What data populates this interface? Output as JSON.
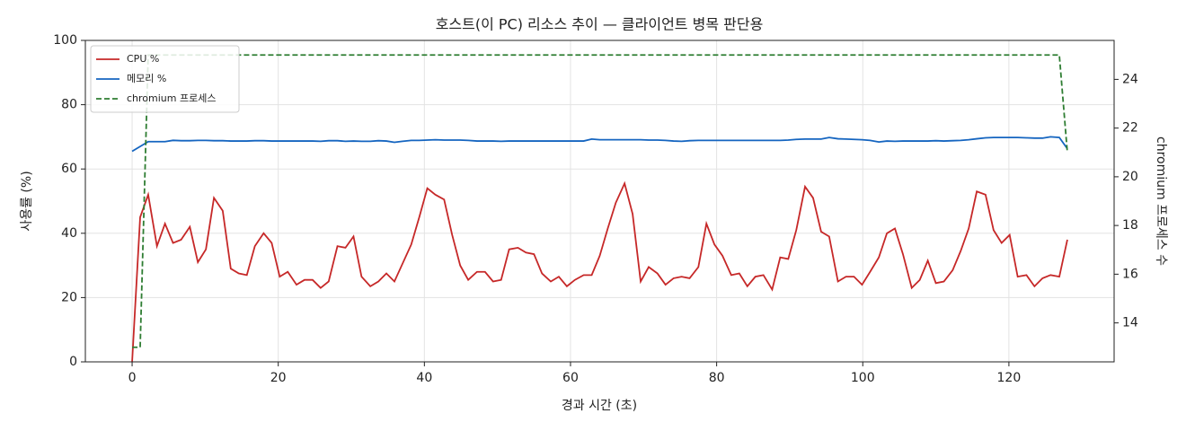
{
  "chart_data": {
    "type": "line",
    "title": "호스트(이 PC) 리소스 추이 — 클라이언트 병목 판단용",
    "x_label": "경과 시간 (초)",
    "y_label": "사용률 (%)",
    "y2_label": "chromium 프로세스 수",
    "x": [
      0,
      1.1,
      2.2,
      3.4,
      4.5,
      5.6,
      6.7,
      7.9,
      9.0,
      10.1,
      11.2,
      12.4,
      13.5,
      14.6,
      15.7,
      16.8,
      18.0,
      19.1,
      20.2,
      21.3,
      22.5,
      23.6,
      24.7,
      25.8,
      26.9,
      28.1,
      29.2,
      30.3,
      31.4,
      32.6,
      33.7,
      34.8,
      35.9,
      37.0,
      38.2,
      39.3,
      40.4,
      41.5,
      42.7,
      43.8,
      44.9,
      46.0,
      47.2,
      48.3,
      49.4,
      50.5,
      51.6,
      52.8,
      53.9,
      55.0,
      56.1,
      57.3,
      58.4,
      59.5,
      60.6,
      61.8,
      62.9,
      64.0,
      65.1,
      66.2,
      67.4,
      68.5,
      69.6,
      70.7,
      71.9,
      73.0,
      74.1,
      75.2,
      76.3,
      77.5,
      78.6,
      79.7,
      80.8,
      82.0,
      83.1,
      84.2,
      85.3,
      86.4,
      87.6,
      88.7,
      89.8,
      90.9,
      92.1,
      93.2,
      94.3,
      95.4,
      96.6,
      97.7,
      98.8,
      99.9,
      101.0,
      102.2,
      103.3,
      104.4,
      105.5,
      106.7,
      107.8,
      108.9,
      110.0,
      111.1,
      112.3,
      113.4,
      114.5,
      115.6,
      116.8,
      117.9,
      119.0,
      120.1,
      121.2,
      122.4,
      123.5,
      124.6,
      125.7,
      126.9,
      128.0
    ],
    "series": [
      {
        "name": "CPU %",
        "color": "#c62828",
        "linestyle": "solid",
        "values": [
          0,
          45,
          52,
          36,
          43,
          37,
          38,
          42,
          31,
          35,
          51,
          47,
          29,
          27.5,
          27,
          36,
          40,
          37,
          26.5,
          28,
          24,
          25.5,
          25.5,
          23,
          25,
          36,
          35.5,
          39,
          26.5,
          23.5,
          25,
          27.5,
          25,
          30.5,
          36.5,
          45,
          54,
          52,
          50.5,
          39.5,
          30,
          25.5,
          28,
          28,
          25,
          25.5,
          35,
          35.5,
          34,
          33.5,
          27.5,
          25,
          26.5,
          23.5,
          25.5,
          27,
          27,
          33,
          41.5,
          49.5,
          55.5,
          46,
          25,
          29.5,
          27.5,
          24,
          26,
          26.5,
          26,
          29.5,
          43,
          36.5,
          33,
          27,
          27.5,
          23.5,
          26.5,
          27,
          22.5,
          32.5,
          32,
          41,
          54.5,
          51,
          40.5,
          39,
          25,
          26.5,
          26.5,
          24,
          28,
          32.5,
          40,
          41.5,
          33.5,
          23,
          25.5,
          31.5,
          24.5,
          25,
          28.5,
          34.5,
          41.5,
          53,
          52,
          41,
          37,
          39.5,
          26.5,
          27,
          23.5,
          26,
          27,
          26.5,
          38
        ]
      },
      {
        "name": "메모리 %",
        "color": "#1565c0",
        "linestyle": "solid",
        "values": [
          65.5,
          67,
          68.5,
          68.5,
          68.5,
          68.9,
          68.8,
          68.8,
          68.9,
          68.9,
          68.8,
          68.8,
          68.7,
          68.7,
          68.7,
          68.8,
          68.8,
          68.7,
          68.7,
          68.7,
          68.7,
          68.7,
          68.7,
          68.6,
          68.8,
          68.8,
          68.6,
          68.7,
          68.6,
          68.6,
          68.8,
          68.7,
          68.3,
          68.6,
          68.9,
          68.9,
          69,
          69.1,
          69,
          69,
          69,
          68.9,
          68.7,
          68.7,
          68.7,
          68.6,
          68.7,
          68.7,
          68.7,
          68.7,
          68.7,
          68.7,
          68.7,
          68.7,
          68.7,
          68.7,
          69.3,
          69.1,
          69.1,
          69.1,
          69.1,
          69.1,
          69.1,
          69,
          69,
          68.9,
          68.7,
          68.6,
          68.8,
          68.9,
          68.9,
          68.9,
          68.9,
          68.9,
          68.9,
          68.9,
          68.9,
          68.9,
          68.9,
          68.9,
          69,
          69.2,
          69.3,
          69.3,
          69.3,
          69.8,
          69.4,
          69.3,
          69.2,
          69.1,
          68.9,
          68.4,
          68.7,
          68.6,
          68.7,
          68.7,
          68.7,
          68.7,
          68.8,
          68.7,
          68.8,
          68.9,
          69.1,
          69.4,
          69.7,
          69.8,
          69.8,
          69.8,
          69.8,
          69.7,
          69.6,
          69.6,
          70,
          69.8,
          66.3
        ]
      },
      {
        "name": "chromium 프로세스",
        "color": "#2e7d32",
        "linestyle": "dashed",
        "axis": "y2",
        "values": [
          13,
          13,
          25,
          25,
          25,
          25,
          25,
          25,
          25,
          25,
          25,
          25,
          25,
          25,
          25,
          25,
          25,
          25,
          25,
          25,
          25,
          25,
          25,
          25,
          25,
          25,
          25,
          25,
          25,
          25,
          25,
          25,
          25,
          25,
          25,
          25,
          25,
          25,
          25,
          25,
          25,
          25,
          25,
          25,
          25,
          25,
          25,
          25,
          25,
          25,
          25,
          25,
          25,
          25,
          25,
          25,
          25,
          25,
          25,
          25,
          25,
          25,
          25,
          25,
          25,
          25,
          25,
          25,
          25,
          25,
          25,
          25,
          25,
          25,
          25,
          25,
          25,
          25,
          25,
          25,
          25,
          25,
          25,
          25,
          25,
          25,
          25,
          25,
          25,
          25,
          25,
          25,
          25,
          25,
          25,
          25,
          25,
          25,
          25,
          25,
          25,
          25,
          25,
          25,
          25,
          25,
          25,
          25,
          25,
          25,
          25,
          25,
          25,
          25,
          21
        ]
      }
    ],
    "xlim": [
      -6.4,
      134.4
    ],
    "xticks": [
      0,
      20,
      40,
      60,
      80,
      100,
      120
    ],
    "ylim": [
      0,
      100
    ],
    "yticks": [
      0,
      20,
      40,
      60,
      80,
      100
    ],
    "y2lim": [
      12.4,
      25.6
    ],
    "y2ticks": [
      14,
      16,
      18,
      20,
      22,
      24
    ],
    "grid": true,
    "legend": "upper left"
  }
}
